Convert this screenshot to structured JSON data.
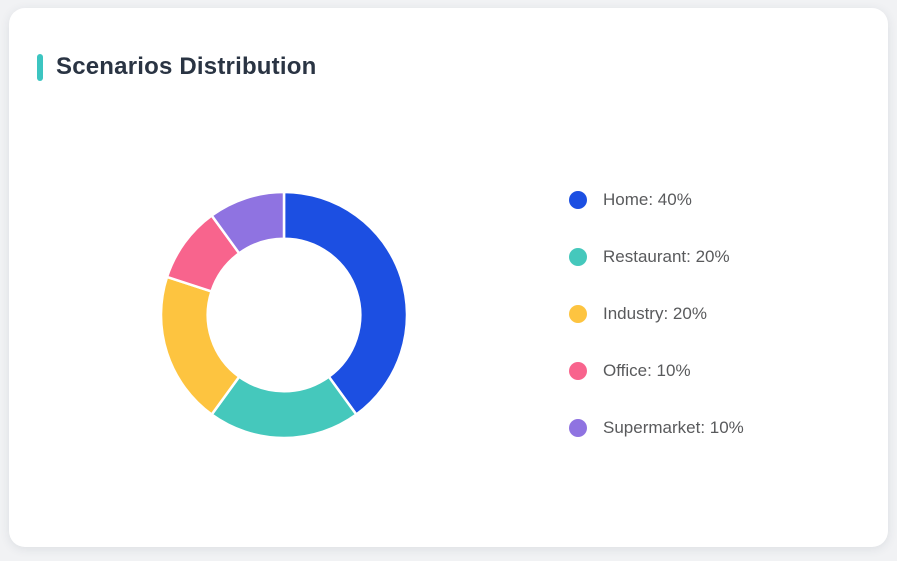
{
  "page": {
    "background": "#F1F2F4"
  },
  "header": {
    "title": "Scenarios Distribution",
    "accent_color": "#3CC5C1"
  },
  "chart_data": {
    "type": "pie",
    "subtype": "donut",
    "title": "Scenarios Distribution",
    "categories": [
      "Home",
      "Restaurant",
      "Industry",
      "Office",
      "Supermarket"
    ],
    "values": [
      40,
      20,
      20,
      10,
      10
    ],
    "unit": "%",
    "colors": [
      "#1C4FE2",
      "#45C8BC",
      "#FDC440",
      "#F8648D",
      "#8F73E1"
    ],
    "start_angle_deg": 0,
    "direction": "clockwise",
    "inner_radius_ratio": 0.62,
    "slice_gap_color": "#FFFFFF",
    "legend_position": "right",
    "legend": [
      {
        "label": "Home: 40%",
        "color": "#1C4FE2"
      },
      {
        "label": "Restaurant: 20%",
        "color": "#45C8BC"
      },
      {
        "label": "Industry: 20%",
        "color": "#FDC440"
      },
      {
        "label": "Office: 10%",
        "color": "#F8648D"
      },
      {
        "label": "Supermarket: 10%",
        "color": "#8F73E1"
      }
    ]
  }
}
